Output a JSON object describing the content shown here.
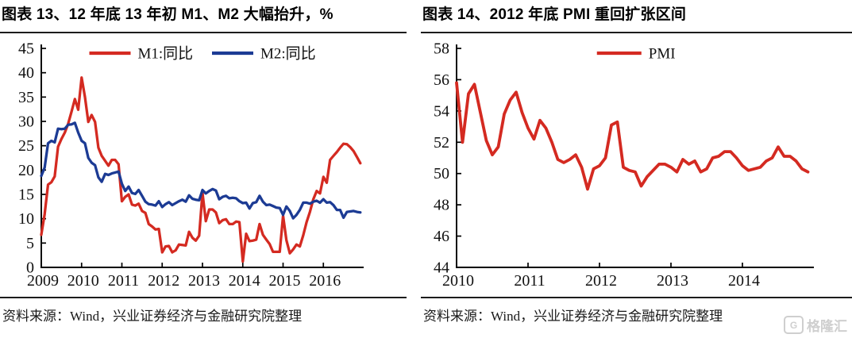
{
  "page": {
    "background": "#ffffff"
  },
  "colors": {
    "series_red": "#d42a21",
    "series_blue": "#1c3b94",
    "axis": "#000000",
    "title_text": "#000000",
    "source_text": "#1a1a1a",
    "watermark_gray": "#cfcfcf"
  },
  "figures": [
    {
      "title": "图表 13、12 年底 13 年初 M1、M2 大幅抬升，%",
      "source": "资料来源：Wind，兴业证券经济与金融研究院整理"
    },
    {
      "title": "图表 14、2012 年底 PMI 重回扩张区间",
      "source": "资料来源：Wind，兴业证券经济与金融研究院整理"
    }
  ],
  "watermark": {
    "icon_letter": "G",
    "text": "格隆汇"
  },
  "chart_data": [
    {
      "type": "line",
      "title": "图表 13、12 年底 13 年初 M1、M2 大幅抬升，%",
      "xlabel": "",
      "ylabel": "",
      "ylim": [
        0,
        45
      ],
      "y_ticks": [
        0,
        5,
        10,
        15,
        20,
        25,
        30,
        35,
        40,
        45
      ],
      "x_tick_labels": [
        "2009",
        "2010",
        "2011",
        "2012",
        "2013",
        "2014",
        "2015",
        "2016"
      ],
      "x_unit": "monthly from 2009-01 to 2016-12",
      "grid": false,
      "legend_position": "top-center",
      "series": [
        {
          "name": "M1:同比",
          "color": "#d42a21",
          "values": [
            6.7,
            10.9,
            17.0,
            17.5,
            18.7,
            24.8,
            26.4,
            27.7,
            29.5,
            32.0,
            34.6,
            32.4,
            39.0,
            35.0,
            29.9,
            31.3,
            29.9,
            24.6,
            22.9,
            21.9,
            20.9,
            22.1,
            22.1,
            21.2,
            13.6,
            14.5,
            15.0,
            12.9,
            12.7,
            13.1,
            11.6,
            11.2,
            8.9,
            8.4,
            7.8,
            7.9,
            3.1,
            4.3,
            4.4,
            3.1,
            3.5,
            4.7,
            4.6,
            4.5,
            7.3,
            6.1,
            5.5,
            6.5,
            15.3,
            9.5,
            11.9,
            11.9,
            11.3,
            9.1,
            9.7,
            9.9,
            8.9,
            8.9,
            9.4,
            9.3,
            1.2,
            6.9,
            5.4,
            5.5,
            5.7,
            8.9,
            6.7,
            5.7,
            4.8,
            3.2,
            3.2,
            3.2,
            10.6,
            5.6,
            2.9,
            3.7,
            4.7,
            4.3,
            6.6,
            9.3,
            11.4,
            14.0,
            15.7,
            15.2,
            18.6,
            17.4,
            22.1,
            22.9,
            23.7,
            24.6,
            25.4,
            25.3,
            24.7,
            23.9,
            22.7,
            21.4
          ]
        },
        {
          "name": "M2:同比",
          "color": "#1c3b94",
          "values": [
            18.8,
            20.5,
            25.5,
            26.0,
            25.7,
            28.5,
            28.4,
            28.5,
            29.3,
            29.4,
            29.7,
            27.7,
            26.0,
            25.5,
            22.5,
            21.5,
            21.0,
            18.5,
            17.6,
            19.2,
            19.0,
            19.3,
            19.5,
            19.7,
            17.2,
            15.7,
            16.6,
            15.3,
            15.1,
            15.9,
            14.7,
            13.5,
            13.0,
            12.9,
            12.7,
            13.6,
            12.4,
            13.0,
            13.4,
            12.8,
            13.2,
            13.6,
            13.9,
            13.5,
            14.8,
            14.1,
            13.9,
            13.8,
            15.9,
            15.2,
            15.7,
            16.1,
            15.8,
            14.0,
            14.5,
            14.7,
            14.2,
            14.3,
            14.2,
            13.6,
            13.2,
            13.3,
            12.1,
            13.2,
            13.4,
            14.7,
            13.5,
            12.8,
            12.9,
            12.6,
            12.3,
            12.2,
            10.8,
            12.5,
            11.6,
            10.1,
            10.8,
            11.8,
            13.3,
            13.3,
            13.1,
            13.5,
            13.7,
            13.3,
            14.0,
            13.3,
            13.4,
            12.8,
            11.8,
            11.8,
            10.2,
            11.4,
            11.5,
            11.6,
            11.4,
            11.3
          ]
        }
      ]
    },
    {
      "type": "line",
      "title": "图表 14、2012 年底 PMI 重回扩张区间",
      "xlabel": "",
      "ylabel": "",
      "ylim": [
        44,
        58
      ],
      "y_ticks": [
        44,
        46,
        48,
        50,
        52,
        54,
        56,
        58
      ],
      "x_tick_labels": [
        "2010",
        "2011",
        "2012",
        "2013",
        "2014"
      ],
      "x_unit": "monthly from 2010-01 to 2014-12",
      "grid": false,
      "legend_position": "top-center",
      "series": [
        {
          "name": "PMI",
          "color": "#d42a21",
          "values": [
            55.8,
            52.0,
            55.1,
            55.7,
            53.9,
            52.1,
            51.2,
            51.7,
            53.8,
            54.7,
            55.2,
            53.9,
            52.9,
            52.2,
            53.4,
            52.9,
            52.0,
            50.9,
            50.7,
            50.9,
            51.2,
            50.4,
            49.0,
            50.3,
            50.5,
            51.0,
            53.1,
            53.3,
            50.4,
            50.2,
            50.1,
            49.2,
            49.8,
            50.2,
            50.6,
            50.6,
            50.4,
            50.1,
            50.9,
            50.6,
            50.8,
            50.1,
            50.3,
            51.0,
            51.1,
            51.4,
            51.4,
            51.0,
            50.5,
            50.2,
            50.3,
            50.4,
            50.8,
            51.0,
            51.7,
            51.1,
            51.1,
            50.8,
            50.3,
            50.1
          ]
        }
      ]
    }
  ]
}
